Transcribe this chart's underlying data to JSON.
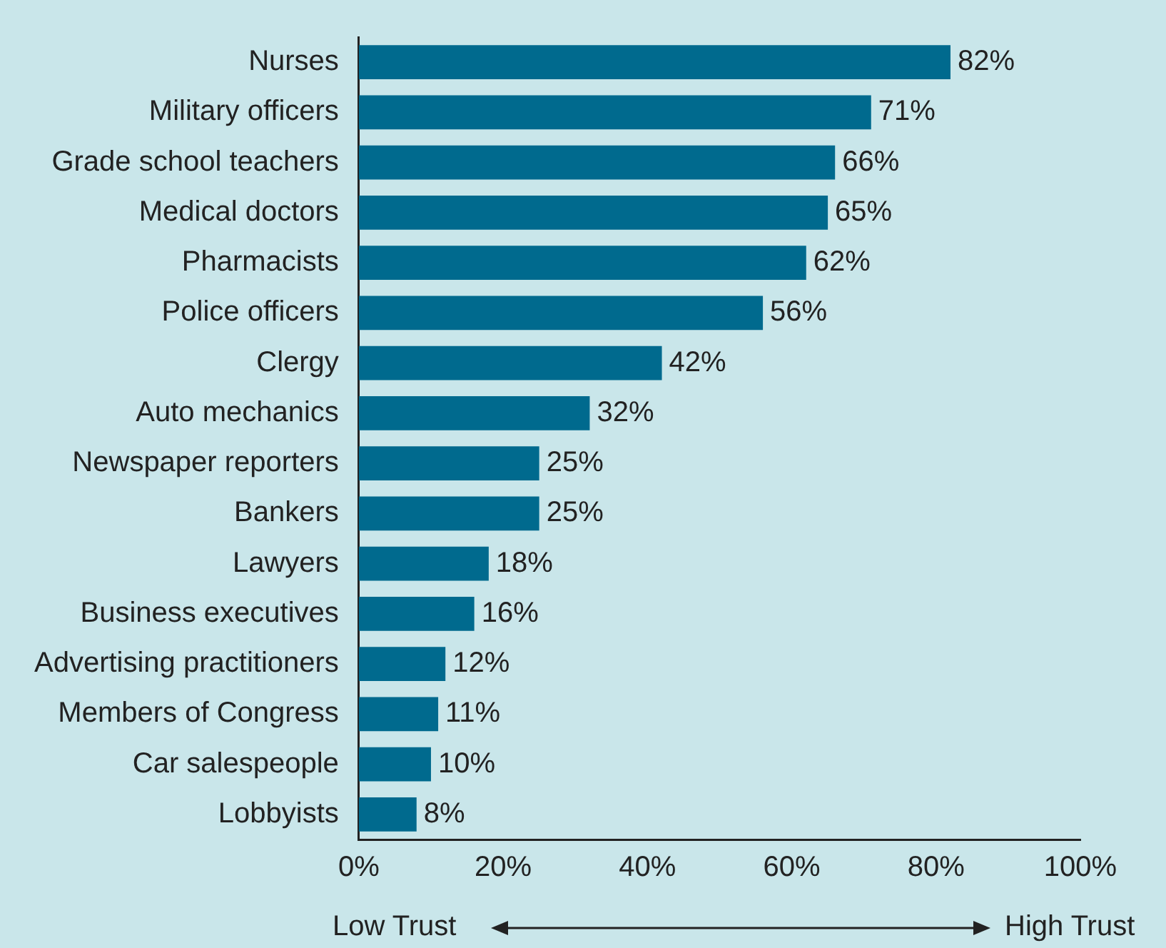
{
  "chart_data": {
    "type": "bar",
    "orientation": "horizontal",
    "categories": [
      "Nurses",
      "Military officers",
      "Grade school teachers",
      "Medical doctors",
      "Pharmacists",
      "Police officers",
      "Clergy",
      "Auto mechanics",
      "Newspaper reporters",
      "Bankers",
      "Lawyers",
      "Business executives",
      "Advertising practitioners",
      "Members of Congress",
      "Car salespeople",
      "Lobbyists"
    ],
    "values": [
      82,
      71,
      66,
      65,
      62,
      56,
      42,
      32,
      25,
      25,
      18,
      16,
      12,
      11,
      10,
      8
    ],
    "value_labels": [
      "82%",
      "71%",
      "66%",
      "65%",
      "62%",
      "56%",
      "42%",
      "32%",
      "25%",
      "25%",
      "18%",
      "16%",
      "12%",
      "11%",
      "10%",
      "8%"
    ],
    "color": "#006a8e",
    "xlim": [
      0,
      100
    ],
    "xticks": [
      {
        "value": 0,
        "label": "0%"
      },
      {
        "value": 20,
        "label": "20%"
      },
      {
        "value": 40,
        "label": "40%"
      },
      {
        "value": 60,
        "label": "60%"
      },
      {
        "value": 80,
        "label": "80%"
      },
      {
        "value": 100,
        "label": "100%"
      }
    ],
    "grid": false,
    "legend": false,
    "annotations": [
      "Low Trust",
      "High Trust"
    ]
  }
}
